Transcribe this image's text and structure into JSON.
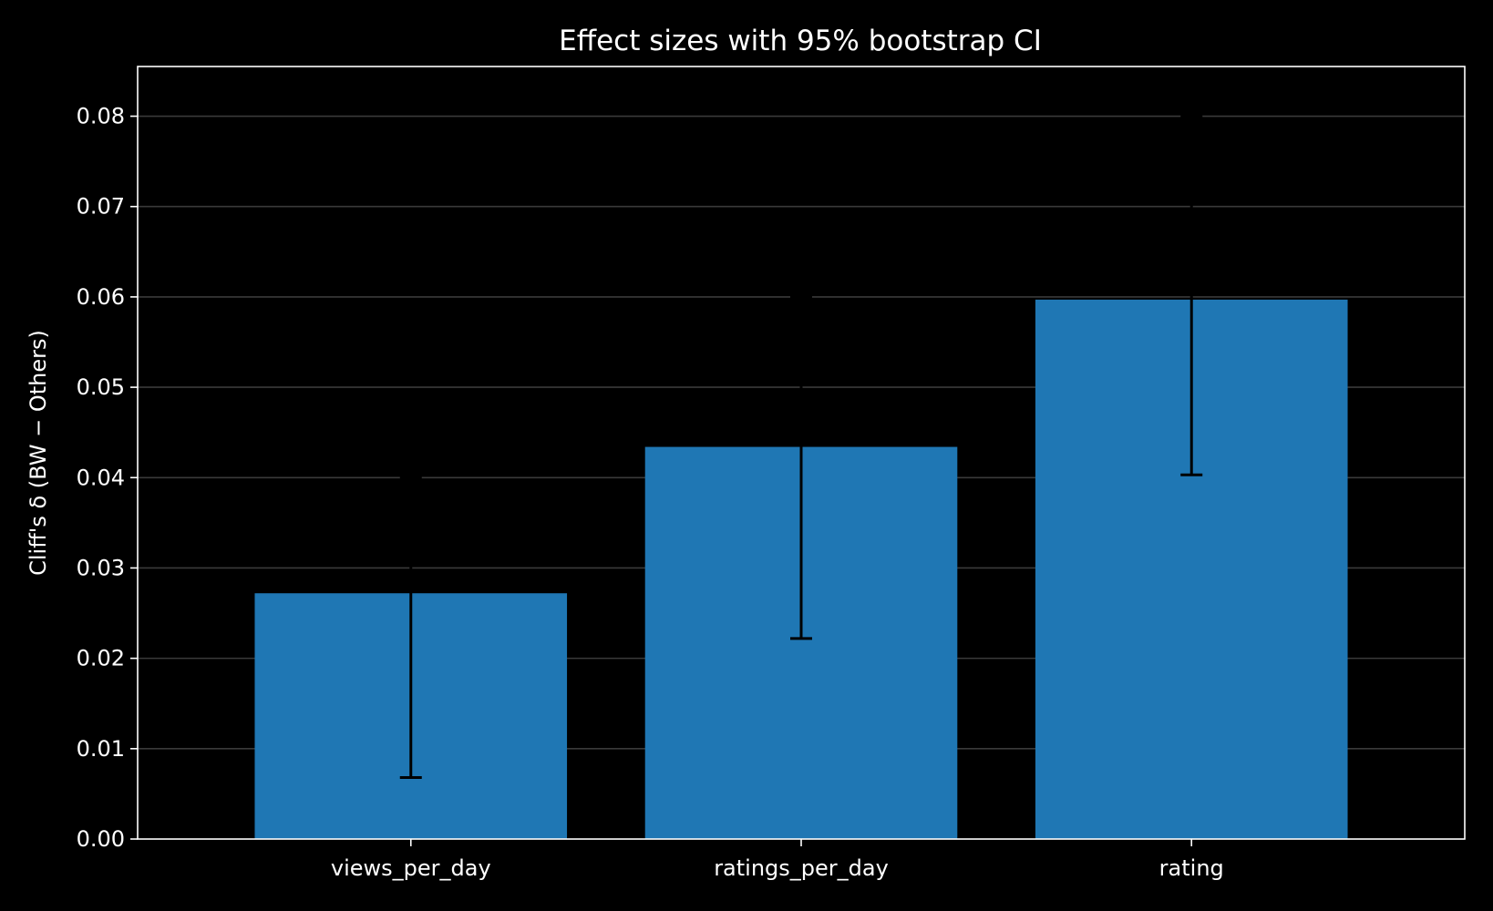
{
  "chart_data": {
    "type": "bar",
    "title": "Effect sizes with 95% bootstrap CI",
    "xlabel": "",
    "ylabel": "Cliff's δ (BW − Others)",
    "categories": [
      "views_per_day",
      "ratings_per_day",
      "rating"
    ],
    "values": [
      0.0272,
      0.0434,
      0.0597
    ],
    "error_bars": {
      "lower": [
        0.0068,
        0.0222,
        0.0403
      ],
      "upper": [
        0.04,
        0.06,
        0.08
      ]
    },
    "ylim": [
      0,
      0.0855
    ],
    "yticks": [
      0.0,
      0.01,
      0.02,
      0.03,
      0.04,
      0.05,
      0.06,
      0.07,
      0.08
    ],
    "ytick_labels": [
      "0.00",
      "0.01",
      "0.02",
      "0.03",
      "0.04",
      "0.05",
      "0.06",
      "0.07",
      "0.08"
    ],
    "grid": "y",
    "legend": "none",
    "colors": {
      "background": "#000000",
      "bar": "#1f77b4",
      "error_bar": "#000000",
      "axes": "#ffffff",
      "text": "#ffffff",
      "grid": "#3a3a3a"
    }
  }
}
